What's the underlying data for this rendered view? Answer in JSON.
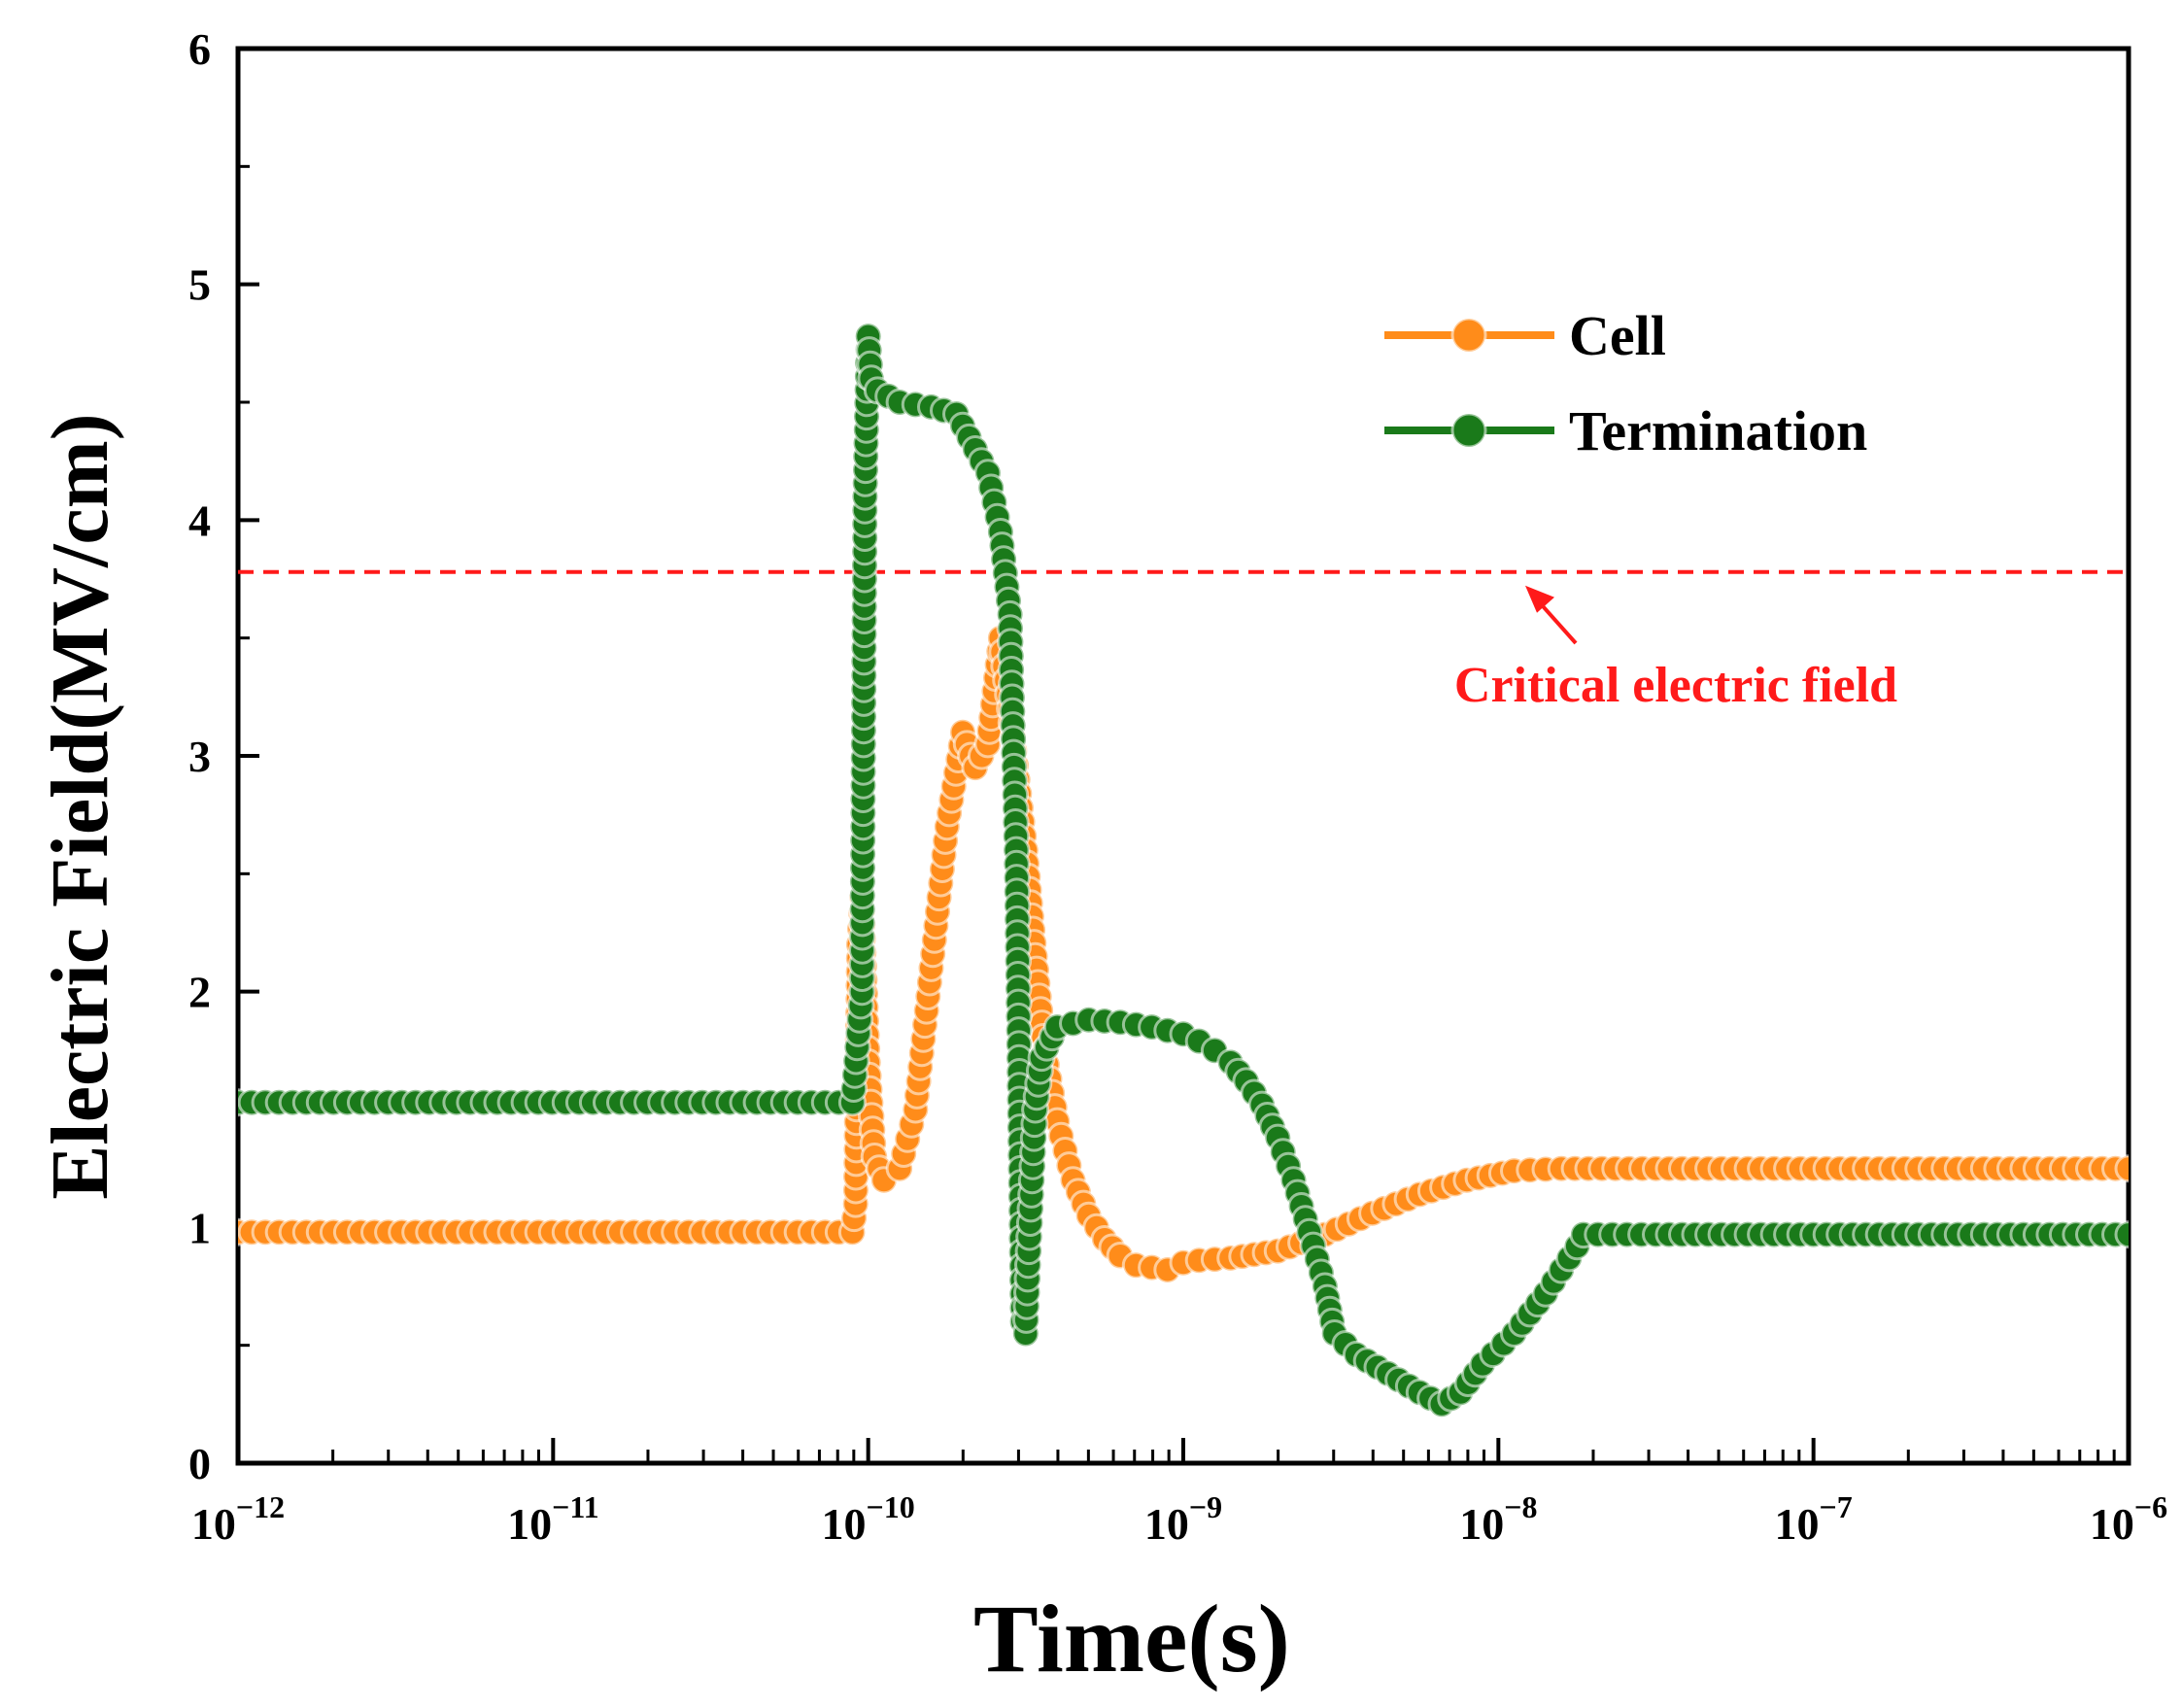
{
  "chart_data": {
    "type": "line",
    "title": "",
    "xlabel": "Time(s)",
    "ylabel": "Electric Field(MV/cm)",
    "xscale": "log",
    "xlim_exponent": [
      -12,
      -6
    ],
    "ylim": [
      0,
      6
    ],
    "x_ticks": [
      {
        "base": "10",
        "exp": "−12"
      },
      {
        "base": "10",
        "exp": "−11"
      },
      {
        "base": "10",
        "exp": "−10"
      },
      {
        "base": "10",
        "exp": "−9"
      },
      {
        "base": "10",
        "exp": "−8"
      },
      {
        "base": "10",
        "exp": "−7"
      },
      {
        "base": "10",
        "exp": "−6"
      }
    ],
    "y_ticks": [
      "0",
      "1",
      "2",
      "3",
      "4",
      "5",
      "6"
    ],
    "legend_position": "top-right",
    "series": [
      {
        "name": "Cell",
        "color": "#ff8c1a",
        "log10_x": [
          -12,
          -10.05,
          -10.04,
          -10.03,
          -10.02,
          -10.0,
          -9.98,
          -9.95,
          -9.9,
          -9.85,
          -9.8,
          -9.75,
          -9.7,
          -9.66,
          -9.62,
          -9.58,
          -9.55,
          -9.5,
          -9.47,
          -9.44,
          -9.4,
          -9.35,
          -9.3,
          -9.25,
          -9.2,
          -9.15,
          -9.05,
          -9.0,
          -8.95,
          -8.85,
          -8.7,
          -8.55,
          -8.4,
          -8.25,
          -8.1,
          -7.95,
          -7.8,
          -7.5,
          -7.0,
          -6.5,
          -6.0
        ],
        "y": [
          0.98,
          0.98,
          1.1,
          2.2,
          2.4,
          1.7,
          1.3,
          1.2,
          1.25,
          1.5,
          2.1,
          2.7,
          3.1,
          2.95,
          3.05,
          3.5,
          3.2,
          2.6,
          2.15,
          1.75,
          1.45,
          1.2,
          1.05,
          0.95,
          0.88,
          0.84,
          0.82,
          0.85,
          0.86,
          0.87,
          0.9,
          0.97,
          1.06,
          1.14,
          1.2,
          1.24,
          1.25,
          1.25,
          1.25,
          1.25,
          1.25
        ]
      },
      {
        "name": "Termination",
        "color": "#1a7a1a",
        "log10_x": [
          -12,
          -10.05,
          -10.02,
          -10.01,
          -10.0,
          -9.99,
          -9.97,
          -9.9,
          -9.8,
          -9.72,
          -9.68,
          -9.62,
          -9.58,
          -9.55,
          -9.53,
          -9.52,
          -9.51,
          -9.5,
          -9.49,
          -9.47,
          -9.45,
          -9.4,
          -9.3,
          -9.2,
          -9.1,
          -9.0,
          -8.95,
          -8.9,
          -8.85,
          -8.8,
          -8.75,
          -8.7,
          -8.65,
          -8.6,
          -8.55,
          -8.52,
          -8.45,
          -8.35,
          -8.25,
          -8.18,
          -8.12,
          -8.05,
          -7.95,
          -7.85,
          -7.75,
          -7.73,
          -7.5,
          -7.0,
          -6.5,
          -6.0
        ],
        "y": [
          1.53,
          1.53,
          2.0,
          4.1,
          4.78,
          4.6,
          4.55,
          4.5,
          4.48,
          4.45,
          4.35,
          4.2,
          3.95,
          3.6,
          2.6,
          1.6,
          0.6,
          0.55,
          0.9,
          1.5,
          1.72,
          1.85,
          1.88,
          1.87,
          1.85,
          1.82,
          1.79,
          1.75,
          1.7,
          1.62,
          1.52,
          1.38,
          1.2,
          0.98,
          0.75,
          0.55,
          0.46,
          0.38,
          0.3,
          0.25,
          0.3,
          0.42,
          0.55,
          0.72,
          0.92,
          0.97,
          0.97,
          0.97,
          0.97,
          0.97
        ]
      }
    ],
    "reference_line": {
      "label": "Critical electric field",
      "y": 3.78,
      "color": "#ff1a1a"
    }
  }
}
